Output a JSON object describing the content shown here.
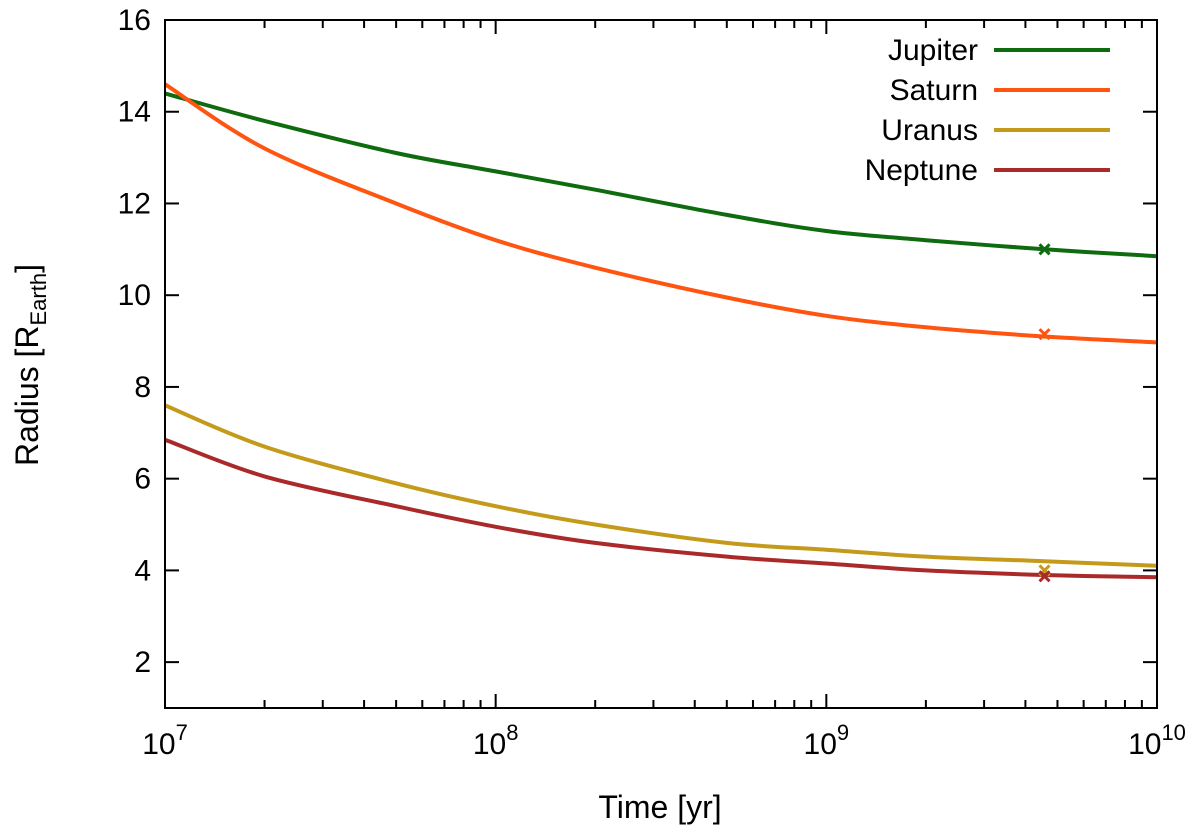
{
  "chart_data": {
    "type": "line",
    "title": "",
    "xlabel": "Time [yr]",
    "ylabel_main": "Radius [R",
    "ylabel_sub": "Earth",
    "ylabel_end": "]",
    "x_scale": "log",
    "xlim": [
      10000000,
      10000000000
    ],
    "ylim": [
      1,
      16
    ],
    "x_ticks": [
      {
        "value": 10000000,
        "base": "10",
        "exp": "7"
      },
      {
        "value": 100000000,
        "base": "10",
        "exp": "8"
      },
      {
        "value": 1000000000,
        "base": "10",
        "exp": "9"
      },
      {
        "value": 10000000000,
        "base": "10",
        "exp": "10"
      }
    ],
    "y_ticks": [
      2,
      4,
      6,
      8,
      10,
      12,
      14,
      16
    ],
    "y_tick_labels": [
      "2",
      "4",
      "6",
      "8",
      "10",
      "12",
      "14",
      "16"
    ],
    "legend_position": "top-right",
    "series": [
      {
        "name": "Jupiter",
        "color": "#0f6b0f",
        "x": [
          10000000,
          20000000,
          50000000,
          100000000,
          200000000,
          500000000,
          1000000000,
          2000000000,
          4570000000,
          10000000000
        ],
        "values": [
          14.4,
          13.8,
          13.1,
          12.7,
          12.3,
          11.75,
          11.4,
          11.2,
          11.0,
          10.85
        ],
        "marker": {
          "x": 4570000000,
          "y": 11.0
        }
      },
      {
        "name": "Saturn",
        "color": "#ff5511",
        "x": [
          10000000,
          20000000,
          50000000,
          100000000,
          200000000,
          500000000,
          1000000000,
          2000000000,
          4570000000,
          10000000000
        ],
        "values": [
          14.6,
          13.2,
          12.0,
          11.2,
          10.6,
          9.95,
          9.55,
          9.3,
          9.1,
          8.97
        ],
        "marker": {
          "x": 4570000000,
          "y": 9.15
        }
      },
      {
        "name": "Uranus",
        "color": "#c49a1a",
        "x": [
          10000000,
          20000000,
          50000000,
          100000000,
          200000000,
          500000000,
          1000000000,
          2000000000,
          4570000000,
          10000000000
        ],
        "values": [
          7.6,
          6.7,
          5.9,
          5.4,
          5.0,
          4.6,
          4.45,
          4.3,
          4.2,
          4.1
        ],
        "marker": {
          "x": 4570000000,
          "y": 4.0
        }
      },
      {
        "name": "Neptune",
        "color": "#aa2a2a",
        "x": [
          10000000,
          20000000,
          50000000,
          100000000,
          200000000,
          500000000,
          1000000000,
          2000000000,
          4570000000,
          10000000000
        ],
        "values": [
          6.85,
          6.05,
          5.4,
          4.95,
          4.6,
          4.3,
          4.15,
          4.0,
          3.9,
          3.85
        ],
        "marker": {
          "x": 4570000000,
          "y": 3.87
        }
      }
    ]
  }
}
